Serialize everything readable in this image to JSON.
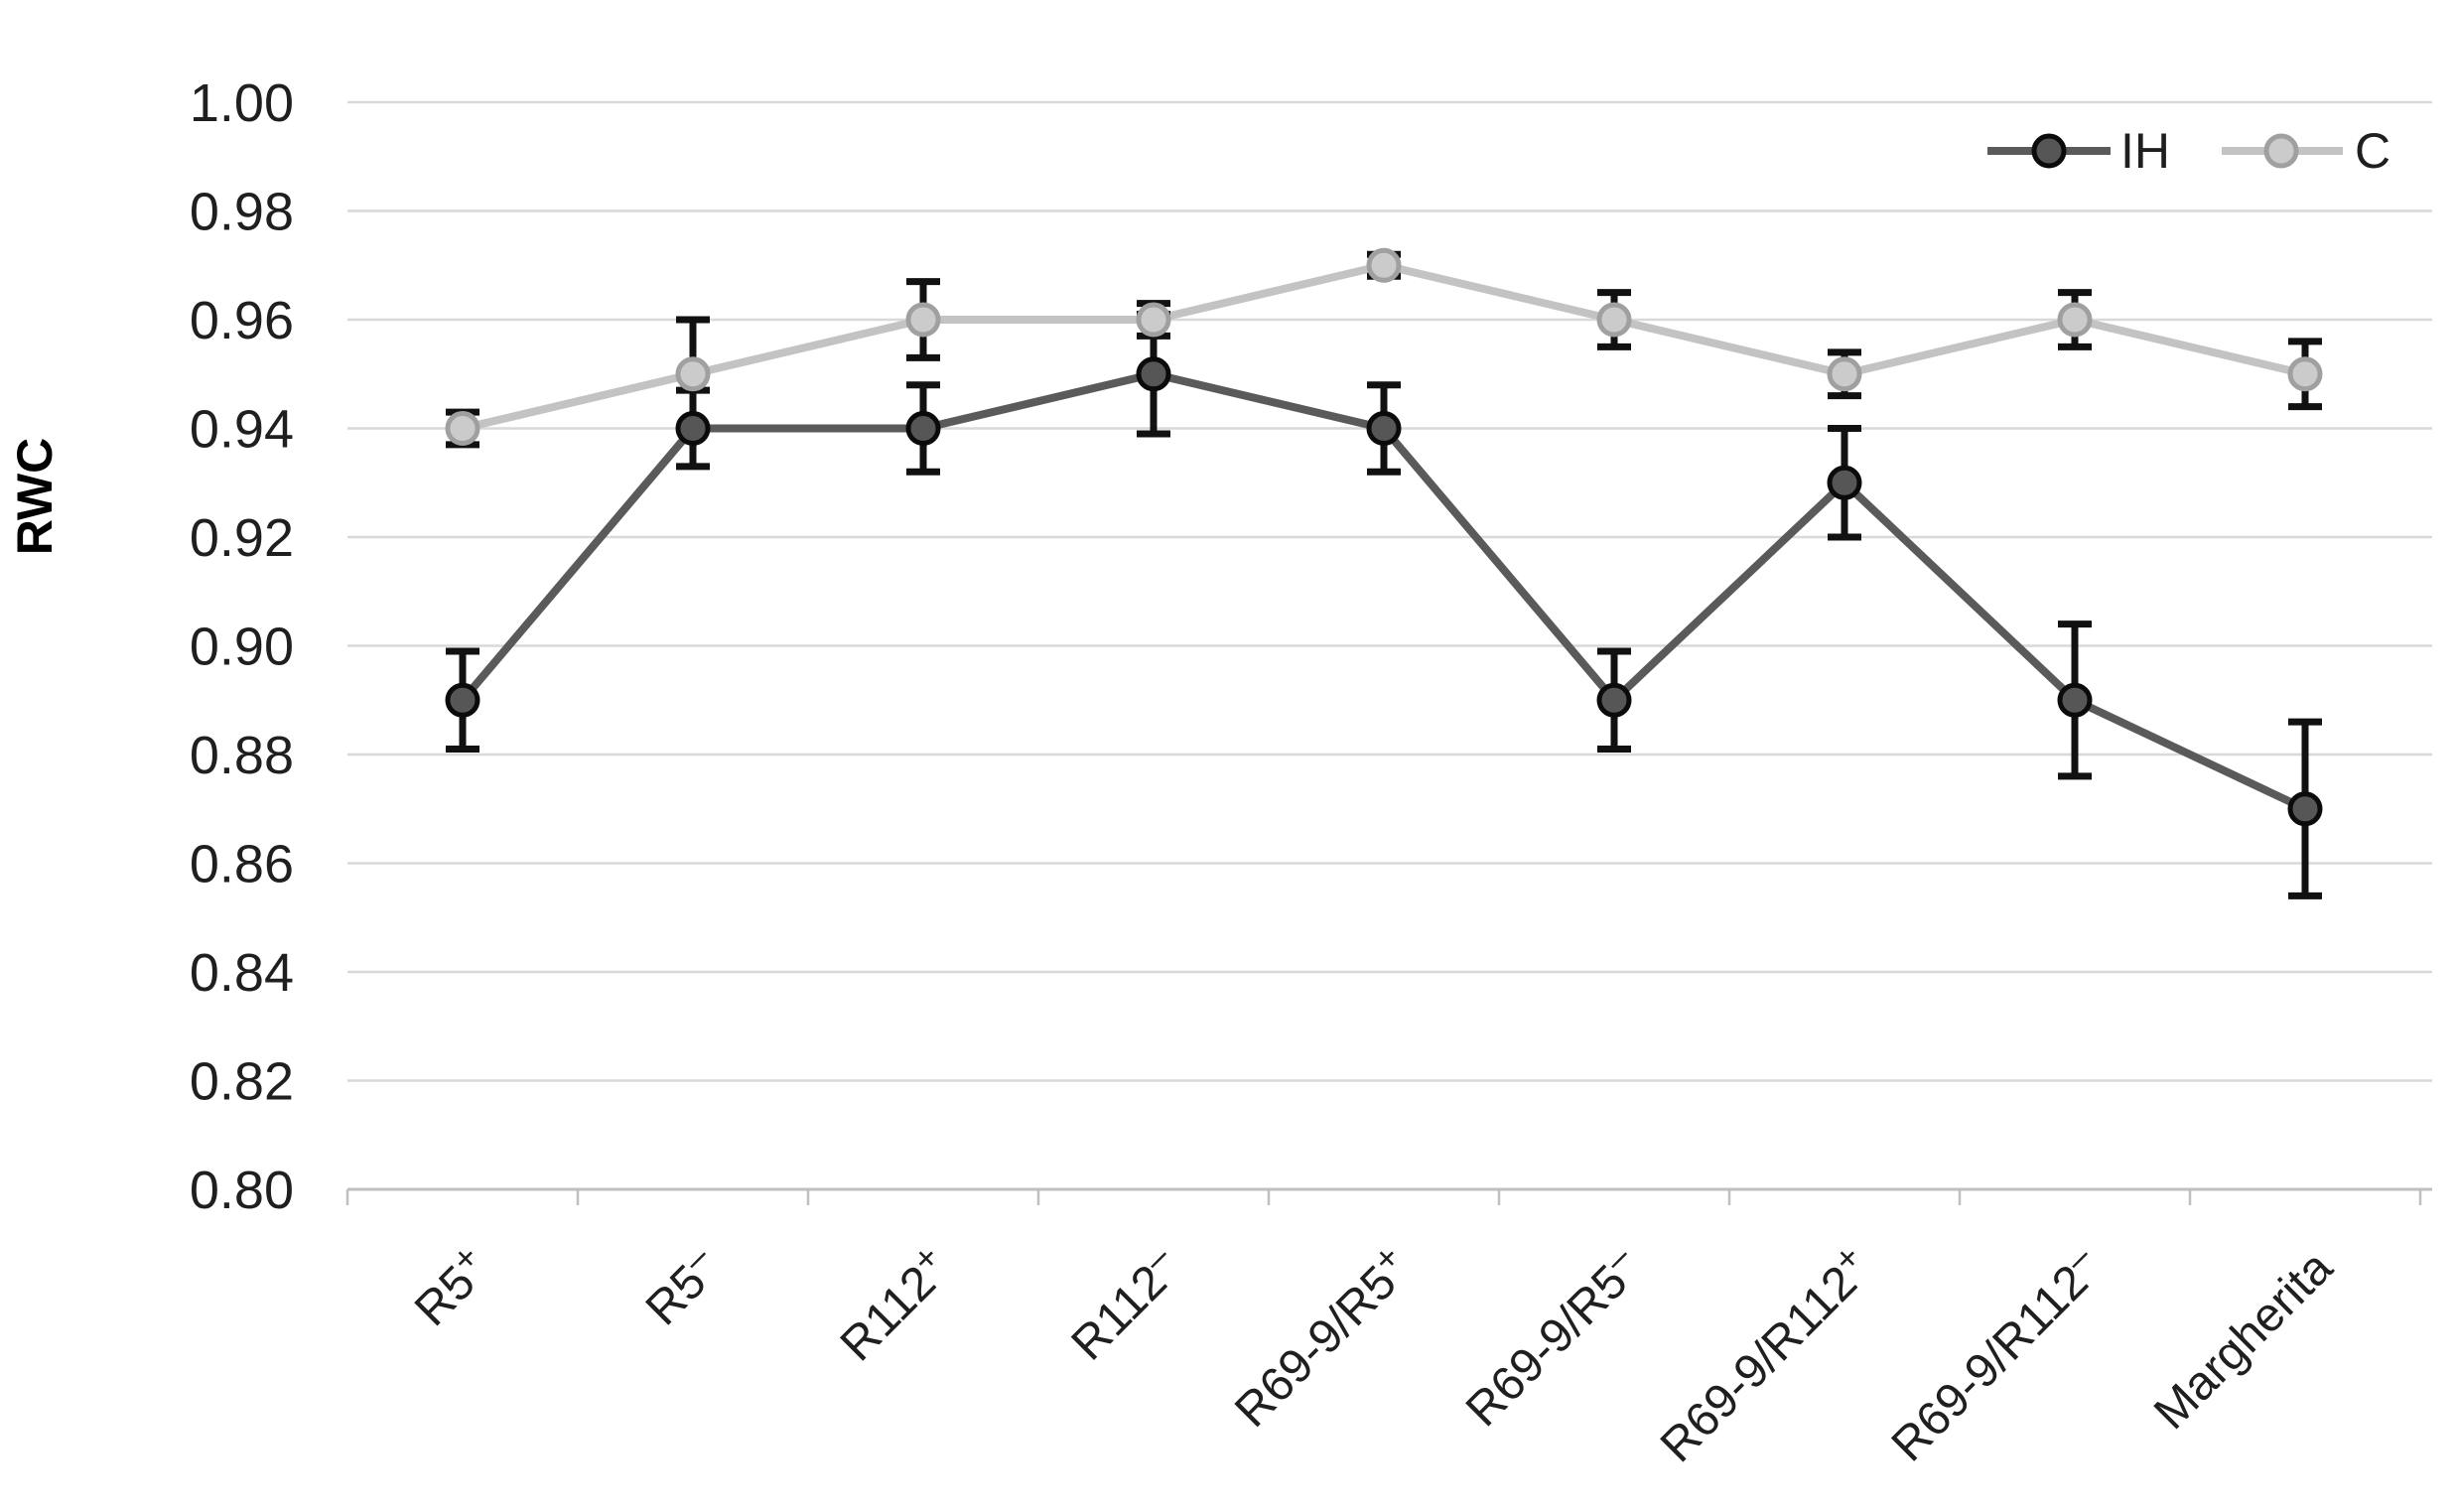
{
  "chart_data": {
    "type": "line",
    "title": "",
    "ylabel": "RWC",
    "xlabel": "",
    "categories": [
      "R5+",
      "R5–",
      "R112+",
      "R112–",
      "R69-9/R5+",
      "R69-9/R5–",
      "R69-9/R112+",
      "R69-9/R112–",
      "Margherita"
    ],
    "series": [
      {
        "name": "IH",
        "values": [
          0.89,
          0.94,
          0.94,
          0.95,
          0.94,
          0.89,
          0.93,
          0.89,
          0.87
        ],
        "errors": [
          0.009,
          0.007,
          0.008,
          0.011,
          0.008,
          0.009,
          0.01,
          0.014,
          0.016
        ],
        "line_color": "#5a5a5a",
        "marker_fill": "#565656",
        "marker_stroke": "#0b0b0b"
      },
      {
        "name": "C",
        "values": [
          0.94,
          0.95,
          0.96,
          0.96,
          0.97,
          0.96,
          0.95,
          0.96,
          0.95
        ],
        "errors": [
          0.003,
          0.01,
          0.007,
          0.003,
          0.002,
          0.005,
          0.004,
          0.005,
          0.006
        ],
        "line_color": "#c3c3c3",
        "marker_fill": "#cbcbcb",
        "marker_stroke": "#a0a0a0"
      }
    ],
    "y_axis": {
      "min": 0.8,
      "max": 1.0,
      "step": 0.02,
      "tick_labels": [
        "0.80",
        "0.82",
        "0.84",
        "0.86",
        "0.88",
        "0.90",
        "0.92",
        "0.94",
        "0.96",
        "0.98",
        "1.00"
      ]
    },
    "legend": {
      "position": "top-right",
      "entries": [
        "IH",
        "C"
      ]
    },
    "grid": true,
    "colors": {
      "gridline": "#d9d9d9",
      "axis_line": "#bfbfbf",
      "error_bar": "#111111",
      "tick_text": "#1f1f1f",
      "background": "#ffffff"
    }
  }
}
